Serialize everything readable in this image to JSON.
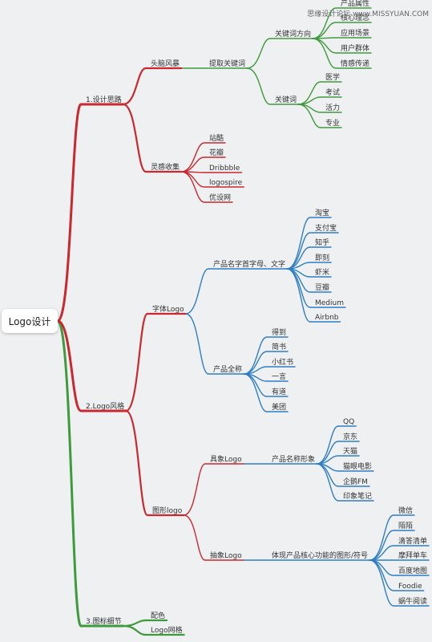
{
  "watermark": "思缘设计论坛 www.MISSYUAN.COM",
  "root": "Logo设计",
  "colors": {
    "red": "#c9292e",
    "blue": "#2f7ec4",
    "green": "#3f9a3c"
  },
  "branches": [
    {
      "label": "1.设计思路",
      "color": "red",
      "children": [
        {
          "label": "头脑风暴",
          "children": [
            {
              "label": "提取关键词",
              "color": "green",
              "children": [
                {
                  "label": "关键词方向",
                  "children": [
                    {
                      "label": "产品属性"
                    },
                    {
                      "label": "核心理念"
                    },
                    {
                      "label": "应用场景"
                    },
                    {
                      "label": "用户群体"
                    },
                    {
                      "label": "情感传递"
                    }
                  ]
                },
                {
                  "label": "关键词",
                  "children": [
                    {
                      "label": "医学"
                    },
                    {
                      "label": "考试"
                    },
                    {
                      "label": "活力"
                    },
                    {
                      "label": "专业"
                    }
                  ]
                }
              ]
            }
          ]
        },
        {
          "label": "灵感收集",
          "children": [
            {
              "label": "站酷"
            },
            {
              "label": "花瓣"
            },
            {
              "label": "Dribbble"
            },
            {
              "label": "logospire"
            },
            {
              "label": "优设网"
            }
          ]
        }
      ]
    },
    {
      "label": "2.Logo风格",
      "color": "red",
      "children": [
        {
          "label": "字体Logo",
          "children": [
            {
              "label": "产品名字首字母、文字",
              "color": "blue",
              "children": [
                {
                  "label": "淘宝"
                },
                {
                  "label": "支付宝"
                },
                {
                  "label": "知乎"
                },
                {
                  "label": "即刻"
                },
                {
                  "label": "虾米"
                },
                {
                  "label": "豆瓣"
                },
                {
                  "label": "Medium"
                },
                {
                  "label": "Airbnb"
                }
              ]
            },
            {
              "label": "产品全称",
              "color": "blue",
              "children": [
                {
                  "label": "得到"
                },
                {
                  "label": "简书"
                },
                {
                  "label": "小红书"
                },
                {
                  "label": "一言"
                },
                {
                  "label": "有道"
                },
                {
                  "label": "美团"
                }
              ]
            }
          ]
        },
        {
          "label": "图形logo",
          "children": [
            {
              "label": "具象Logo",
              "children": [
                {
                  "label": "产品名称形象",
                  "color": "blue",
                  "children": [
                    {
                      "label": "QQ"
                    },
                    {
                      "label": "京东"
                    },
                    {
                      "label": "天猫"
                    },
                    {
                      "label": "猫眼电影"
                    },
                    {
                      "label": "企鹅FM"
                    },
                    {
                      "label": "印象笔记"
                    }
                  ]
                }
              ]
            },
            {
              "label": "抽象Logo",
              "children": [
                {
                  "label": "体现产品核心功能的图形/符号",
                  "color": "blue",
                  "children": [
                    {
                      "label": "微信"
                    },
                    {
                      "label": "陌陌"
                    },
                    {
                      "label": "滴答清单"
                    },
                    {
                      "label": "摩拜单车"
                    },
                    {
                      "label": "百度地图"
                    },
                    {
                      "label": "Foodie"
                    },
                    {
                      "label": "蜗牛阅读"
                    }
                  ]
                }
              ]
            }
          ]
        }
      ]
    },
    {
      "label": "3.图标细节",
      "color": "green",
      "children": [
        {
          "label": "配色"
        },
        {
          "label": "Logo网格"
        }
      ]
    }
  ]
}
